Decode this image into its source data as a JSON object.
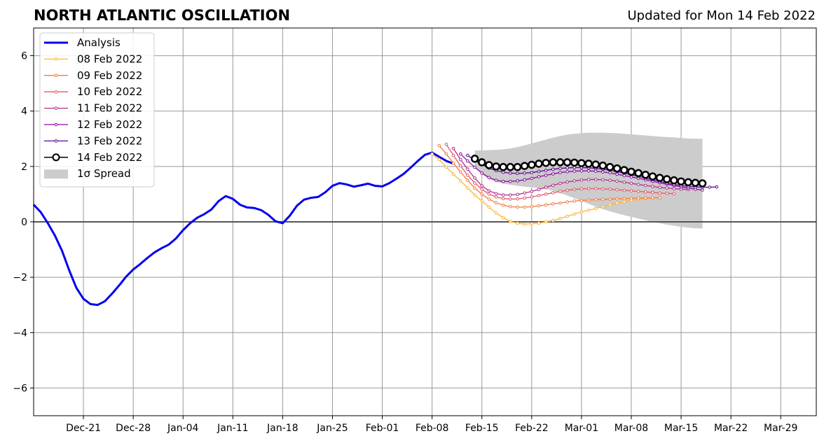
{
  "header": {
    "title": "NORTH ATLANTIC OSCILLATION",
    "updated": "Updated for Mon 14 Feb 2022"
  },
  "chart_data": {
    "type": "line",
    "title": "NORTH ATLANTIC OSCILLATION",
    "subtitle": "Updated for Mon 14 Feb 2022",
    "xlabel": "",
    "ylabel": "",
    "x_axis": "date",
    "xlim": [
      "2021-12-14",
      "2022-04-03"
    ],
    "ylim": [
      -7,
      7
    ],
    "grid": true,
    "legend_placement": "top-left",
    "x_tick_labels": [
      "Dec-21",
      "Dec-28",
      "Jan-04",
      "Jan-11",
      "Jan-18",
      "Jan-25",
      "Feb-01",
      "Feb-08",
      "Feb-15",
      "Feb-22",
      "Mar-01",
      "Mar-08",
      "Mar-15",
      "Mar-22",
      "Mar-29"
    ],
    "x_tick_dates": [
      "2021-12-21",
      "2021-12-28",
      "2022-01-04",
      "2022-01-11",
      "2022-01-18",
      "2022-01-25",
      "2022-02-01",
      "2022-02-08",
      "2022-02-15",
      "2022-02-22",
      "2022-03-01",
      "2022-03-08",
      "2022-03-15",
      "2022-03-22",
      "2022-03-29"
    ],
    "y_ticks": [
      6,
      4,
      2,
      0,
      -2,
      -4,
      -6
    ],
    "y_tick_labels": [
      "6",
      "4",
      "2",
      "0",
      "−2",
      "−4",
      "−6"
    ],
    "legend": [
      "Analysis",
      "08 Feb 2022",
      "09 Feb 2022",
      "10 Feb 2022",
      "11 Feb 2022",
      "12 Feb 2022",
      "13 Feb 2022",
      "14 Feb 2022",
      "1σ Spread"
    ],
    "series": [
      {
        "name": "Analysis",
        "color": "#0000ee",
        "style": "thick-line",
        "start": "2021-12-14",
        "values": [
          0.62,
          0.35,
          -0.05,
          -0.5,
          -1.05,
          -1.75,
          -2.38,
          -2.78,
          -2.97,
          -3.0,
          -2.87,
          -2.6,
          -2.3,
          -1.98,
          -1.72,
          -1.52,
          -1.3,
          -1.1,
          -0.95,
          -0.82,
          -0.6,
          -0.3,
          -0.05,
          0.15,
          0.28,
          0.45,
          0.75,
          0.93,
          0.83,
          0.62,
          0.52,
          0.5,
          0.42,
          0.25,
          0.02,
          -0.05,
          0.22,
          0.58,
          0.8,
          0.87,
          0.9,
          1.07,
          1.3,
          1.4,
          1.35,
          1.27,
          1.32,
          1.38,
          1.3,
          1.28,
          1.4,
          1.56,
          1.73,
          1.96,
          2.2,
          2.42,
          2.5,
          2.35,
          2.2,
          2.1
        ]
      },
      {
        "name": "08 Feb 2022",
        "color": "#fcb531",
        "style": "dotted-line",
        "start": "2022-02-08",
        "values": [
          2.45,
          2.25,
          1.98,
          1.72,
          1.48,
          1.22,
          0.97,
          0.75,
          0.53,
          0.32,
          0.15,
          0.02,
          -0.05,
          -0.08,
          -0.07,
          -0.05,
          0.0,
          0.05,
          0.12,
          0.2,
          0.28,
          0.36,
          0.42,
          0.48,
          0.55,
          0.62,
          0.68,
          0.73,
          0.78,
          0.82,
          0.84,
          0.86
        ]
      },
      {
        "name": "09 Feb 2022",
        "color": "#f47b3e",
        "style": "dotted-line",
        "start": "2022-02-09",
        "values": [
          2.75,
          2.45,
          2.12,
          1.8,
          1.5,
          1.22,
          1.0,
          0.82,
          0.69,
          0.6,
          0.55,
          0.53,
          0.53,
          0.55,
          0.58,
          0.61,
          0.65,
          0.68,
          0.72,
          0.75,
          0.77,
          0.79,
          0.8,
          0.81,
          0.82,
          0.83,
          0.84,
          0.85,
          0.86,
          0.86,
          0.87,
          0.87
        ]
      },
      {
        "name": "10 Feb 2022",
        "color": "#e0576a",
        "style": "dotted-line",
        "start": "2022-02-10",
        "values": [
          2.8,
          2.4,
          2.02,
          1.68,
          1.4,
          1.18,
          1.0,
          0.9,
          0.84,
          0.82,
          0.83,
          0.86,
          0.9,
          0.95,
          1.0,
          1.05,
          1.1,
          1.14,
          1.17,
          1.19,
          1.2,
          1.2,
          1.19,
          1.18,
          1.16,
          1.14,
          1.12,
          1.1,
          1.08,
          1.06,
          1.04,
          1.03,
          1.02
        ]
      },
      {
        "name": "11 Feb 2022",
        "color": "#b42f8f",
        "style": "dotted-line",
        "start": "2022-02-11",
        "values": [
          2.65,
          2.25,
          1.9,
          1.58,
          1.3,
          1.12,
          1.02,
          0.97,
          0.97,
          0.99,
          1.04,
          1.1,
          1.17,
          1.25,
          1.32,
          1.39,
          1.44,
          1.48,
          1.51,
          1.53,
          1.53,
          1.52,
          1.5,
          1.47,
          1.43,
          1.39,
          1.35,
          1.31,
          1.28,
          1.24,
          1.22,
          1.2,
          1.18,
          1.17
        ]
      },
      {
        "name": "12 Feb 2022",
        "color": "#8b0aa5",
        "style": "dotted-line",
        "start": "2022-02-12",
        "values": [
          2.45,
          2.2,
          1.97,
          1.76,
          1.6,
          1.5,
          1.46,
          1.46,
          1.48,
          1.52,
          1.57,
          1.63,
          1.68,
          1.73,
          1.78,
          1.81,
          1.83,
          1.84,
          1.84,
          1.83,
          1.8,
          1.77,
          1.72,
          1.67,
          1.62,
          1.57,
          1.52,
          1.46,
          1.41,
          1.36,
          1.31,
          1.26,
          1.22,
          1.18,
          1.15
        ]
      },
      {
        "name": "13 Feb 2022",
        "color": "#5a048f",
        "style": "dotted-line",
        "start": "2022-02-13",
        "values": [
          2.4,
          2.22,
          2.07,
          1.94,
          1.85,
          1.79,
          1.76,
          1.75,
          1.76,
          1.78,
          1.82,
          1.86,
          1.9,
          1.93,
          1.95,
          1.96,
          1.96,
          1.95,
          1.93,
          1.9,
          1.86,
          1.81,
          1.76,
          1.7,
          1.64,
          1.58,
          1.52,
          1.46,
          1.4,
          1.35,
          1.31,
          1.28,
          1.26,
          1.25,
          1.25,
          1.26
        ]
      },
      {
        "name": "14 Feb 2022",
        "color": "#000000",
        "style": "circle-markers",
        "start": "2022-02-14",
        "values": [
          2.28,
          2.15,
          2.05,
          2.0,
          1.98,
          1.98,
          1.98,
          2.02,
          2.06,
          2.1,
          2.13,
          2.15,
          2.15,
          2.15,
          2.14,
          2.12,
          2.1,
          2.07,
          2.03,
          1.98,
          1.93,
          1.87,
          1.81,
          1.76,
          1.7,
          1.64,
          1.59,
          1.54,
          1.5,
          1.46,
          1.43,
          1.41,
          1.39
        ]
      }
    ],
    "spread": {
      "name": "1σ Spread",
      "color": "#cccccc",
      "start": "2022-02-14",
      "upper": [
        2.58,
        2.58,
        2.59,
        2.6,
        2.62,
        2.65,
        2.7,
        2.76,
        2.83,
        2.9,
        2.97,
        3.04,
        3.1,
        3.15,
        3.18,
        3.2,
        3.22,
        3.22,
        3.22,
        3.21,
        3.2,
        3.18,
        3.16,
        3.14,
        3.12,
        3.1,
        3.08,
        3.06,
        3.05,
        3.03,
        3.01,
        3.0,
        3.0
      ],
      "lower": [
        1.98,
        1.72,
        1.55,
        1.44,
        1.38,
        1.34,
        1.3,
        1.27,
        1.25,
        1.22,
        1.18,
        1.12,
        1.04,
        0.95,
        0.85,
        0.75,
        0.65,
        0.55,
        0.46,
        0.38,
        0.31,
        0.24,
        0.18,
        0.12,
        0.06,
        0.0,
        -0.05,
        -0.1,
        -0.14,
        -0.18,
        -0.21,
        -0.23,
        -0.24
      ]
    }
  }
}
